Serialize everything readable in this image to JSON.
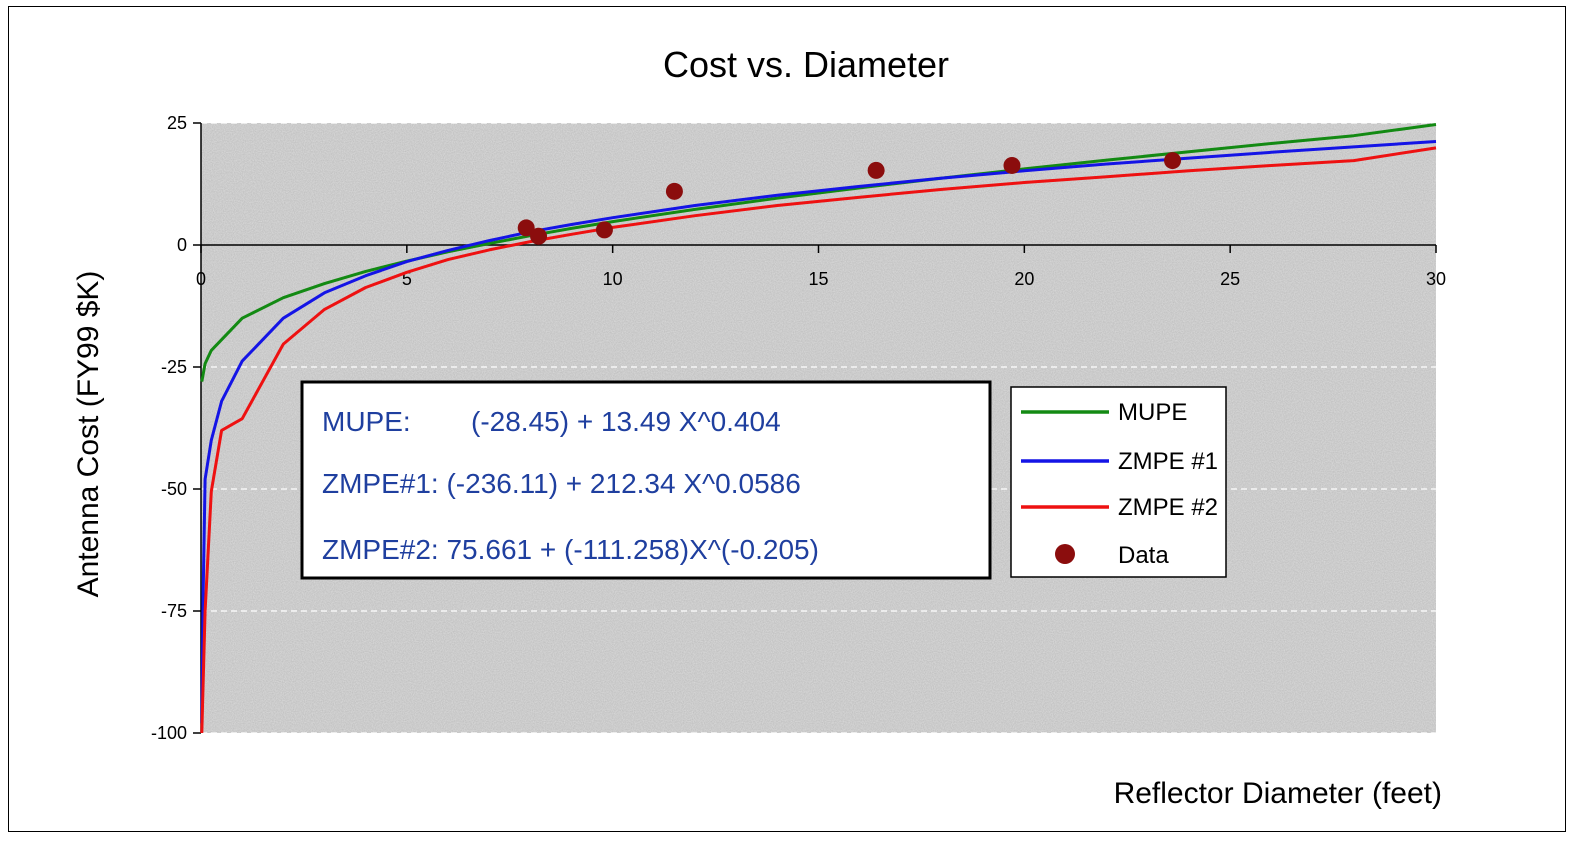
{
  "chart_data": {
    "type": "line",
    "title": "Cost vs. Diameter",
    "xlabel": "Reflector Diameter (feet)",
    "ylabel": "Antenna Cost (FY99 $K)",
    "xlim": [
      0,
      30
    ],
    "ylim": [
      -100,
      25
    ],
    "x_ticks": [
      "0",
      "5",
      "10",
      "15",
      "20",
      "25",
      "30"
    ],
    "y_ticks": [
      "25",
      "0",
      "-25",
      "-50",
      "-75",
      "-100"
    ],
    "grid": "horizontal dashed",
    "background": "gray textured",
    "legend_position": "right-middle",
    "series": [
      {
        "name": "MUPE",
        "color": "#138a13",
        "style": "line",
        "x": [
          0.02,
          0.1,
          0.25,
          0.5,
          1,
          2,
          3,
          4,
          5,
          6,
          7,
          8,
          9,
          10,
          12,
          14,
          16,
          18,
          20,
          22,
          24,
          26,
          28,
          30
        ],
        "y": [
          -28.0,
          -24.3,
          -21.6,
          -19.4,
          -15.0,
          -10.8,
          -7.9,
          -5.4,
          -3.3,
          -1.4,
          0.3,
          1.9,
          3.4,
          4.8,
          7.3,
          9.6,
          11.7,
          13.7,
          15.6,
          17.4,
          19.1,
          20.8,
          22.4,
          24.7
        ]
      },
      {
        "name": "ZMPE #1",
        "color": "#1414e6",
        "style": "line",
        "x": [
          0.02,
          0.05,
          0.1,
          0.25,
          0.5,
          1,
          2,
          3,
          4,
          5,
          6,
          7,
          8,
          9,
          10,
          12,
          14,
          16,
          18,
          20,
          22,
          24,
          26,
          28,
          30
        ],
        "y": [
          -98.0,
          -72.0,
          -48.0,
          -40.0,
          -32.0,
          -23.8,
          -15.0,
          -9.8,
          -6.3,
          -3.4,
          -1.1,
          0.9,
          2.7,
          4.2,
          5.6,
          8.1,
          10.2,
          12.0,
          13.7,
          15.2,
          16.6,
          17.8,
          19.0,
          20.1,
          21.2
        ]
      },
      {
        "name": "ZMPE #2",
        "color": "#ee1111",
        "style": "line",
        "x": [
          0.02,
          0.05,
          0.1,
          0.25,
          0.5,
          1,
          2,
          3,
          4,
          5,
          6,
          7,
          8,
          9,
          10,
          12,
          14,
          16,
          18,
          20,
          22,
          24,
          26,
          28,
          30
        ],
        "y": [
          -100.0,
          -90.0,
          -75.0,
          -50.5,
          -38.0,
          -35.6,
          -20.3,
          -13.2,
          -8.7,
          -5.6,
          -3.0,
          -1.0,
          0.7,
          2.2,
          3.6,
          6.0,
          8.1,
          9.8,
          11.4,
          12.8,
          14.0,
          15.2,
          16.3,
          17.3,
          19.9
        ]
      },
      {
        "name": "Data",
        "color": "#8b0d0d",
        "style": "markers",
        "x": [
          7.9,
          8.2,
          9.8,
          11.5,
          16.4,
          19.7,
          23.6
        ],
        "y": [
          3.5,
          1.8,
          3.1,
          11.0,
          15.3,
          16.3,
          17.3
        ]
      }
    ],
    "annotation": {
      "lines": [
        {
          "label": "MUPE:",
          "formula": "(-28.45) + 13.49 X^0.404"
        },
        {
          "label": "ZMPE#1: (-236.11) + 212.34 X^0.0586",
          "formula": ""
        },
        {
          "label": "ZMPE#2: 75.661 + (-111.258)X^(-0.205)",
          "formula": ""
        }
      ]
    }
  }
}
